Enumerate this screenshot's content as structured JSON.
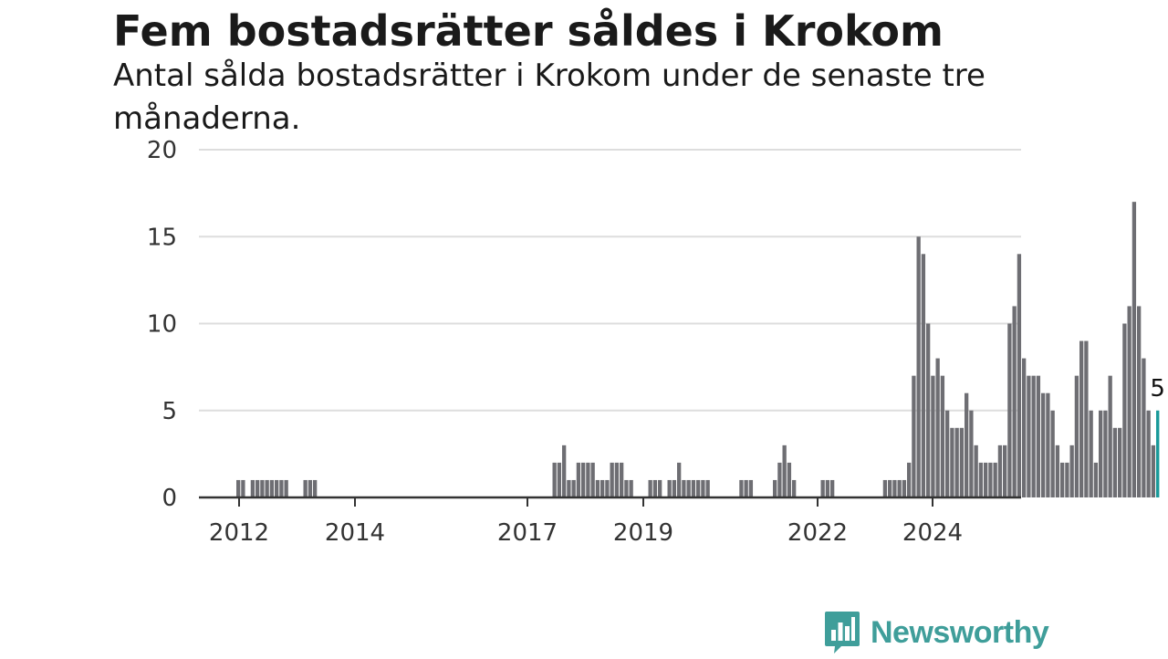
{
  "chart_data": {
    "type": "bar",
    "title": "Fem bostadsrätter såldes i Krokom",
    "subtitle": "Antal sålda bostadsrätter i Krokom under de senaste tre månaderna.",
    "ylim": [
      0,
      20
    ],
    "y_ticks": [
      0,
      5,
      10,
      15,
      20
    ],
    "x_ticks": [
      "2012",
      "2014",
      "2017",
      "2019",
      "2022",
      "2024"
    ],
    "grid": true,
    "highlight_label": "5",
    "colors": {
      "bar": "#6e6e73",
      "highlight": "#1a9a9a",
      "grid": "#dddddd",
      "axis": "#333333"
    },
    "values": [
      1,
      1,
      0,
      1,
      1,
      1,
      1,
      1,
      1,
      1,
      1,
      0,
      0,
      0,
      1,
      1,
      1,
      0,
      0,
      0,
      0,
      0,
      0,
      0,
      0,
      0,
      0,
      0,
      0,
      0,
      0,
      0,
      0,
      0,
      0,
      0,
      0,
      0,
      0,
      0,
      0,
      0,
      0,
      0,
      0,
      0,
      0,
      0,
      0,
      0,
      0,
      0,
      0,
      0,
      0,
      0,
      0,
      0,
      0,
      0,
      0,
      0,
      0,
      0,
      0,
      0,
      2,
      2,
      3,
      1,
      1,
      2,
      2,
      2,
      2,
      1,
      1,
      1,
      2,
      2,
      2,
      1,
      1,
      0,
      0,
      0,
      1,
      1,
      1,
      0,
      1,
      1,
      2,
      1,
      1,
      1,
      1,
      1,
      1,
      0,
      0,
      0,
      0,
      0,
      0,
      1,
      1,
      1,
      0,
      0,
      0,
      0,
      1,
      2,
      3,
      2,
      1,
      0,
      0,
      0,
      0,
      0,
      1,
      1,
      1,
      0,
      0,
      0,
      0,
      0,
      0,
      0,
      0,
      0,
      0,
      1,
      1,
      1,
      1,
      1,
      2,
      7,
      15,
      14,
      10,
      7,
      8,
      7,
      5,
      4,
      4,
      4,
      6,
      5,
      3,
      2,
      2,
      2,
      2,
      3,
      3,
      10,
      11,
      14,
      8,
      7,
      7,
      7,
      6,
      6,
      5,
      3,
      2,
      2,
      3,
      7,
      9,
      9,
      5,
      2,
      5,
      5,
      7,
      4,
      4,
      10,
      11,
      17,
      11,
      8,
      5,
      3,
      5
    ]
  },
  "brand": {
    "name": "Newsworthy",
    "icon": "newsworthy-bar-chart-icon",
    "color": "#3f9e9a"
  }
}
